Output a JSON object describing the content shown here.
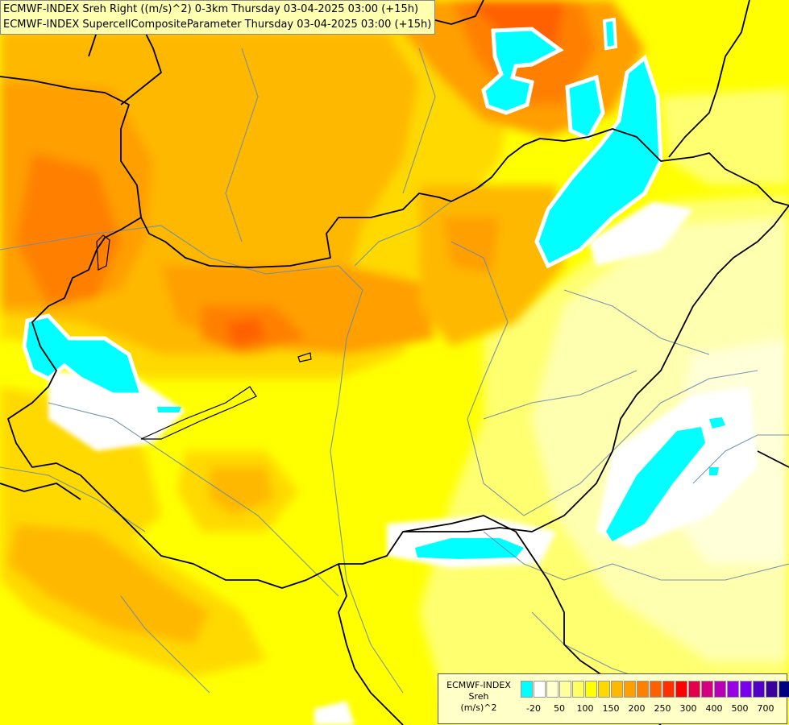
{
  "title": {
    "line1": "ECMWF-INDEX Sreh Right ((m/s)^2) 0-3km Thursday 03-04-2025 03:00 (+15h)",
    "line2": "ECMWF-INDEX SupercellCompositeParameter Thursday 03-04-2025 03:00 (+15h)"
  },
  "legend": {
    "source": "ECMWF-INDEX",
    "variable": "Sreh",
    "unit": "(m/s)^2",
    "colors": [
      "#00ffff",
      "#ffffff",
      "#ffffd0",
      "#ffffa0",
      "#ffff60",
      "#ffff00",
      "#ffd900",
      "#ffb800",
      "#ff9f00",
      "#ff8000",
      "#ff6000",
      "#ff3000",
      "#ff0000",
      "#e6004c",
      "#d40080",
      "#b800b8",
      "#9900e6",
      "#7a00f0",
      "#5200c8",
      "#3a00a0",
      "#000080"
    ],
    "ticks": [
      {
        "label": "-20",
        "index": 1
      },
      {
        "label": "50",
        "index": 3
      },
      {
        "label": "100",
        "index": 5
      },
      {
        "label": "150",
        "index": 7
      },
      {
        "label": "200",
        "index": 9
      },
      {
        "label": "250",
        "index": 11
      },
      {
        "label": "300",
        "index": 13
      },
      {
        "label": "400",
        "index": 15
      },
      {
        "label": "500",
        "index": 17
      },
      {
        "label": "700",
        "index": 19
      }
    ]
  }
}
